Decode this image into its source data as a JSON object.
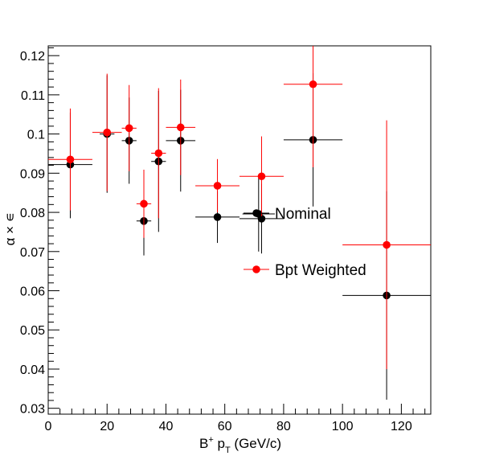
{
  "chart_data": {
    "type": "scatter",
    "title": "",
    "xlabel": "B",
    "xlabel_superscript": "+",
    "xlabel_rest": " p",
    "xlabel_subscript": "T",
    "xlabel_unit": " (GeV/c)",
    "ylabel": "α × ∊",
    "xlim": [
      0,
      130
    ],
    "ylim": [
      0.0285,
      0.1225
    ],
    "xticks": [
      0,
      20,
      40,
      60,
      80,
      100,
      120
    ],
    "xtick_labels": [
      "0",
      "20",
      "40",
      "60",
      "80",
      "100",
      "120"
    ],
    "yticks": [
      0.03,
      0.04,
      0.05,
      0.06,
      0.07,
      0.08,
      0.09,
      0.1,
      0.11,
      0.12
    ],
    "ytick_labels": [
      "0.03",
      "0.04",
      "0.05",
      "0.06",
      "0.07",
      "0.08",
      "0.09",
      "0.1",
      "0.11",
      "0.12"
    ],
    "grid": false,
    "legend_position": "center-right",
    "series": [
      {
        "name": "Nominal",
        "color": "#000000",
        "points": [
          {
            "x": 7.5,
            "xlo": 0,
            "xhi": 15,
            "y": 0.0922,
            "ylo": 0.0785,
            "yhi": 0.1055
          },
          {
            "x": 20,
            "xlo": 17.5,
            "xhi": 22.5,
            "y": 0.1,
            "ylo": 0.085,
            "yhi": 0.115
          },
          {
            "x": 27.5,
            "xlo": 25,
            "xhi": 30,
            "y": 0.0983,
            "ylo": 0.0873,
            "yhi": 0.1093
          },
          {
            "x": 32.5,
            "xlo": 30,
            "xhi": 35,
            "y": 0.0778,
            "ylo": 0.069,
            "yhi": 0.0866
          },
          {
            "x": 37.5,
            "xlo": 35,
            "xhi": 40,
            "y": 0.093,
            "ylo": 0.075,
            "yhi": 0.111
          },
          {
            "x": 45,
            "xlo": 40,
            "xhi": 50,
            "y": 0.0983,
            "ylo": 0.0853,
            "yhi": 0.1113
          },
          {
            "x": 57.5,
            "xlo": 50,
            "xhi": 65,
            "y": 0.0788,
            "ylo": 0.0722,
            "yhi": 0.0854
          },
          {
            "x": 71.5,
            "xlo": 66,
            "xhi": 77,
            "y": 0.0796,
            "ylo": 0.07,
            "yhi": 0.0892
          },
          {
            "x": 72.5,
            "xlo": 65,
            "xhi": 80,
            "y": 0.0784,
            "ylo": 0.0695,
            "yhi": 0.0873
          },
          {
            "x": 90,
            "xlo": 80,
            "xhi": 100,
            "y": 0.0985,
            "ylo": 0.0815,
            "yhi": 0.1155
          },
          {
            "x": 115,
            "xlo": 100,
            "xhi": 130,
            "y": 0.0588,
            "ylo": 0.0322,
            "yhi": 0.0854
          }
        ]
      },
      {
        "name": "Bpt Weighted",
        "color": "#ff0000",
        "points": [
          {
            "x": 7.5,
            "xlo": 0,
            "xhi": 15,
            "y": 0.0935,
            "ylo": 0.0805,
            "yhi": 0.1065
          },
          {
            "x": 20,
            "xlo": 15,
            "xhi": 25,
            "y": 0.1004,
            "ylo": 0.0854,
            "yhi": 0.1154
          },
          {
            "x": 27.5,
            "xlo": 25,
            "xhi": 30,
            "y": 0.1015,
            "ylo": 0.0905,
            "yhi": 0.1125
          },
          {
            "x": 32.5,
            "xlo": 30,
            "xhi": 35,
            "y": 0.0822,
            "ylo": 0.0735,
            "yhi": 0.0909
          },
          {
            "x": 37.5,
            "xlo": 35,
            "xhi": 40,
            "y": 0.0951,
            "ylo": 0.0785,
            "yhi": 0.1117
          },
          {
            "x": 45,
            "xlo": 40,
            "xhi": 50,
            "y": 0.1017,
            "ylo": 0.0895,
            "yhi": 0.1139
          },
          {
            "x": 57.5,
            "xlo": 50,
            "xhi": 65,
            "y": 0.0868,
            "ylo": 0.08,
            "yhi": 0.0936
          },
          {
            "x": 72.5,
            "xlo": 65,
            "xhi": 80,
            "y": 0.0892,
            "ylo": 0.079,
            "yhi": 0.0994
          },
          {
            "x": 90,
            "xlo": 80,
            "xhi": 100,
            "y": 0.1127,
            "ylo": 0.0915,
            "yhi": 0.1225
          },
          {
            "x": 115,
            "xlo": 100,
            "xhi": 130,
            "y": 0.0717,
            "ylo": 0.04,
            "yhi": 0.1035
          }
        ]
      }
    ]
  }
}
